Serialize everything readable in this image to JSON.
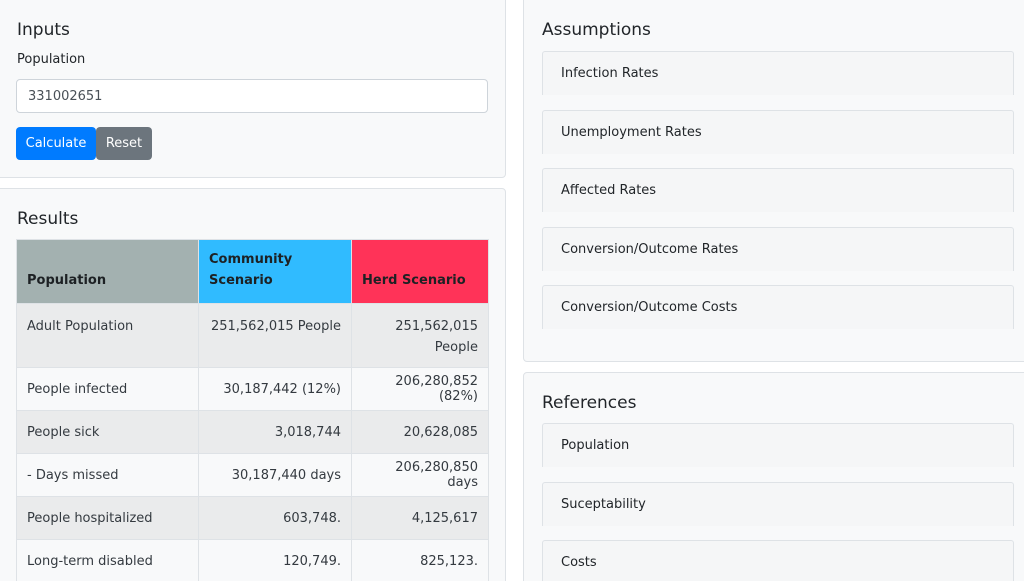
{
  "inputs": {
    "title": "Inputs",
    "population_label": "Population",
    "population_value": "331002651",
    "calculate_label": "Calculate",
    "reset_label": "Reset"
  },
  "results": {
    "title": "Results",
    "headers": [
      "Population",
      "Community Scenario",
      "Herd Scenario"
    ],
    "header_colors": [
      "#a3b1b0",
      "#30bbff",
      "#ff3358"
    ],
    "rows": [
      [
        "Adult Population",
        "251,562,015 People",
        "251,562,015 People"
      ],
      [
        "People infected",
        "30,187,442 (12%)",
        "206,280,852 (82%)"
      ],
      [
        "People sick",
        "3,018,744",
        "20,628,085"
      ],
      [
        "- Days missed",
        "30,187,440 days",
        "206,280,850 days"
      ],
      [
        "People hospitalized",
        "603,748.",
        "4,125,617"
      ],
      [
        "Long-term disabled",
        "120,749.",
        "825,123."
      ]
    ]
  },
  "assumptions": {
    "title": "Assumptions",
    "items": [
      "Infection Rates",
      "Unemployment Rates",
      "Affected Rates",
      "Conversion/Outcome Rates",
      "Conversion/Outcome Costs"
    ]
  },
  "references": {
    "title": "References",
    "items": [
      "Population",
      "Suceptability",
      "Costs"
    ]
  }
}
